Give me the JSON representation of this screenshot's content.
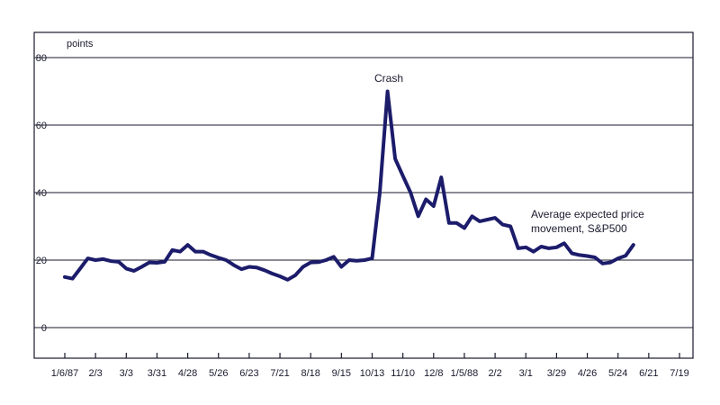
{
  "chart_data": {
    "type": "line",
    "title": "",
    "ylabel": "points",
    "xlabel": "",
    "ylim": [
      -8,
      80
    ],
    "y_ticks": [
      0,
      20,
      40,
      60,
      80
    ],
    "grid": "horizontal",
    "line_color": "#1c1c6b",
    "x_tick_labels": [
      "1/6/87",
      "2/3",
      "3/3",
      "3/31",
      "4/28",
      "5/26",
      "6/23",
      "7/21",
      "8/18",
      "9/15",
      "10/13",
      "11/10",
      "12/8",
      "1/5/88",
      "2/2",
      "3/1",
      "3/29",
      "4/26",
      "5/24",
      "6/21",
      "7/19"
    ],
    "annotations": [
      {
        "text": "Crash"
      },
      {
        "text": "Average expected price"
      },
      {
        "text": "movement, S&P500"
      }
    ],
    "series": [
      {
        "values": [
          15,
          14.5,
          17.5,
          20.5,
          20,
          20.3,
          19.7,
          19.5,
          17.5,
          16.8,
          18,
          19.3,
          19.2,
          19.5,
          23,
          22.5,
          24.5,
          22.5,
          22.5,
          21.5,
          20.7,
          20,
          18.5,
          17.3,
          18,
          17.8,
          17,
          16,
          15.2,
          14.2,
          15.5,
          18,
          19.3,
          19.4,
          20,
          21,
          18,
          20,
          19.8,
          20,
          20.5,
          40,
          70,
          50,
          45,
          40,
          33,
          38,
          36,
          44.5,
          31,
          31,
          29.5,
          33,
          31.5,
          32,
          32.5,
          30.5,
          30,
          23.5,
          23.8,
          22.5,
          24,
          23.5,
          23.8,
          25,
          22,
          21.5,
          21.2,
          20.8,
          19,
          19.3,
          20.5,
          21.3,
          24.5
        ]
      }
    ]
  }
}
